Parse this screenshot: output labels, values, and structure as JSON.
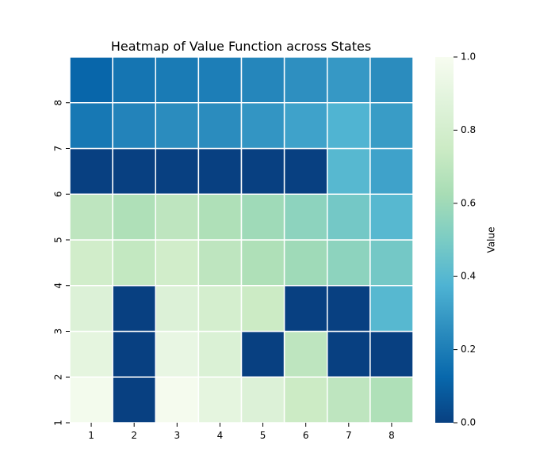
{
  "chart_data": {
    "type": "heatmap",
    "title": "Heatmap of Value Function across States",
    "x_categories": [
      "1",
      "2",
      "3",
      "4",
      "5",
      "6",
      "7",
      "8"
    ],
    "y_categories": [
      "1",
      "2",
      "3",
      "4",
      "5",
      "6",
      "7",
      "8"
    ],
    "values": [
      [
        0.98,
        0.0,
        0.99,
        0.9,
        0.85,
        0.75,
        0.7,
        0.65
      ],
      [
        0.9,
        0.0,
        0.92,
        0.84,
        0.0,
        0.7,
        0.0,
        0.0
      ],
      [
        0.85,
        0.0,
        0.85,
        0.8,
        0.75,
        0.0,
        0.0,
        0.4
      ],
      [
        0.78,
        0.72,
        0.78,
        0.7,
        0.65,
        0.6,
        0.55,
        0.48
      ],
      [
        0.7,
        0.65,
        0.7,
        0.65,
        0.6,
        0.55,
        0.48,
        0.4
      ],
      [
        0.0,
        0.0,
        0.0,
        0.0,
        0.0,
        0.0,
        0.4,
        0.32
      ],
      [
        0.18,
        0.22,
        0.25,
        0.25,
        0.28,
        0.32,
        0.38,
        0.3
      ],
      [
        0.12,
        0.17,
        0.19,
        0.2,
        0.23,
        0.26,
        0.29,
        0.25
      ]
    ],
    "colormap": "GnBu_r",
    "colorbar": {
      "label": "Value",
      "ticks": [
        "0.0",
        "0.2",
        "0.4",
        "0.6",
        "0.8",
        "1.0"
      ],
      "range": [
        0,
        1
      ]
    },
    "colors": [
      "#084081",
      "#0868ac",
      "#2b8cbe",
      "#4eb3d3",
      "#7bccc4",
      "#a8ddb5",
      "#ccebc5",
      "#e0f3db",
      "#f7fcf0"
    ]
  }
}
